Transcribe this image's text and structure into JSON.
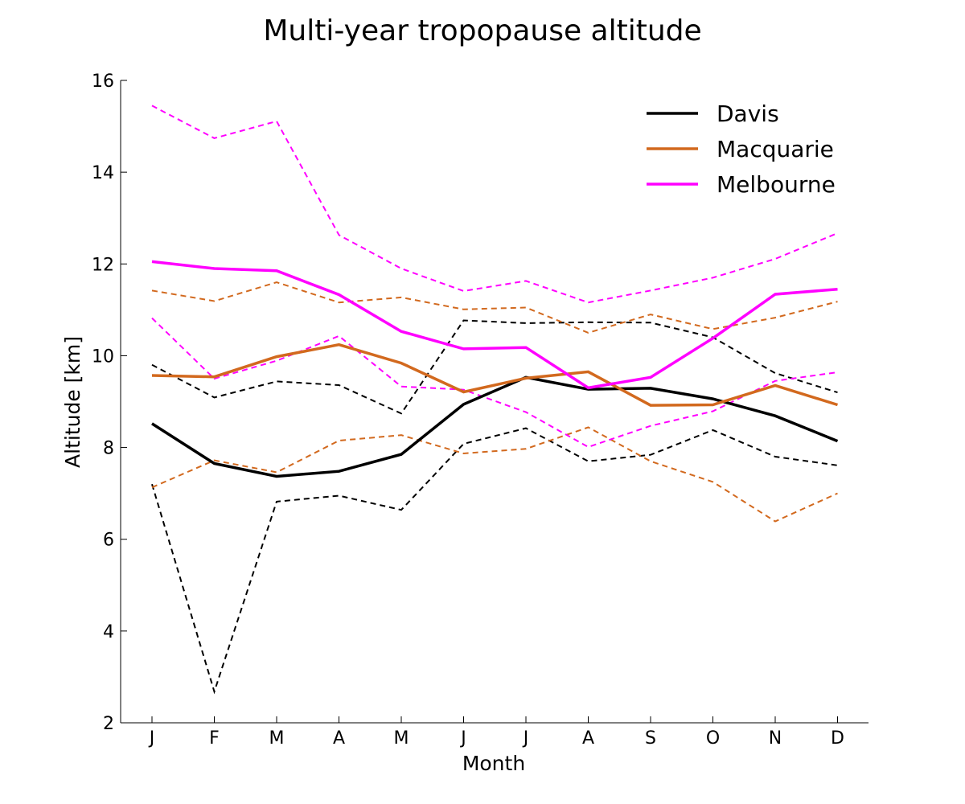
{
  "chart_data": {
    "type": "line",
    "title": "Multi-year tropopause altitude",
    "xlabel": "Month",
    "ylabel": "Altitude [km]",
    "categories": [
      "J",
      "F",
      "M",
      "A",
      "M",
      "J",
      "J",
      "A",
      "S",
      "O",
      "N",
      "D"
    ],
    "ylim": [
      2,
      16
    ],
    "yticks": [
      2,
      4,
      6,
      8,
      10,
      12,
      14,
      16
    ],
    "grid": false,
    "legend_position": "top-right",
    "series": [
      {
        "name": "Davis",
        "role": "mean",
        "color": "#000000",
        "values": [
          8.52,
          7.65,
          7.37,
          7.48,
          7.85,
          8.94,
          9.53,
          9.27,
          9.29,
          9.06,
          8.69,
          8.14
        ]
      },
      {
        "name": "Macquarie",
        "role": "mean",
        "color": "#d2691e",
        "values": [
          9.57,
          9.54,
          9.98,
          10.24,
          9.84,
          9.21,
          9.51,
          9.65,
          8.92,
          8.93,
          9.35,
          8.93
        ]
      },
      {
        "name": "Melbourne",
        "role": "mean",
        "color": "#ff00ff",
        "values": [
          12.05,
          11.9,
          11.85,
          11.33,
          10.53,
          10.15,
          10.18,
          9.3,
          9.53,
          10.38,
          11.34,
          11.45
        ]
      },
      {
        "role": "upper",
        "color": "#000000",
        "values": [
          9.8,
          9.09,
          9.44,
          9.36,
          8.74,
          10.77,
          10.71,
          10.73,
          10.72,
          10.4,
          9.62,
          9.2
        ]
      },
      {
        "role": "lower",
        "color": "#000000",
        "values": [
          7.2,
          2.68,
          6.82,
          6.95,
          6.64,
          8.08,
          8.42,
          7.7,
          7.84,
          8.38,
          7.8,
          7.61
        ]
      },
      {
        "role": "upper",
        "color": "#d2691e",
        "values": [
          11.42,
          11.19,
          11.6,
          11.16,
          11.27,
          11.01,
          11.05,
          10.5,
          10.9,
          10.58,
          10.83,
          11.18
        ]
      },
      {
        "role": "lower",
        "color": "#d2691e",
        "values": [
          7.13,
          7.72,
          7.46,
          8.15,
          8.27,
          7.87,
          7.97,
          8.44,
          7.7,
          7.25,
          6.39,
          7.0
        ]
      },
      {
        "role": "upper",
        "color": "#ff00ff",
        "values": [
          15.45,
          14.74,
          15.11,
          12.63,
          11.9,
          11.41,
          11.63,
          11.16,
          11.42,
          11.7,
          12.11,
          12.67
        ]
      },
      {
        "role": "lower",
        "color": "#ff00ff",
        "values": [
          10.82,
          9.5,
          9.89,
          10.43,
          9.33,
          9.26,
          8.77,
          8.01,
          8.47,
          8.79,
          9.45,
          9.64
        ]
      }
    ],
    "legend": [
      "Davis",
      "Macquarie",
      "Melbourne"
    ]
  }
}
